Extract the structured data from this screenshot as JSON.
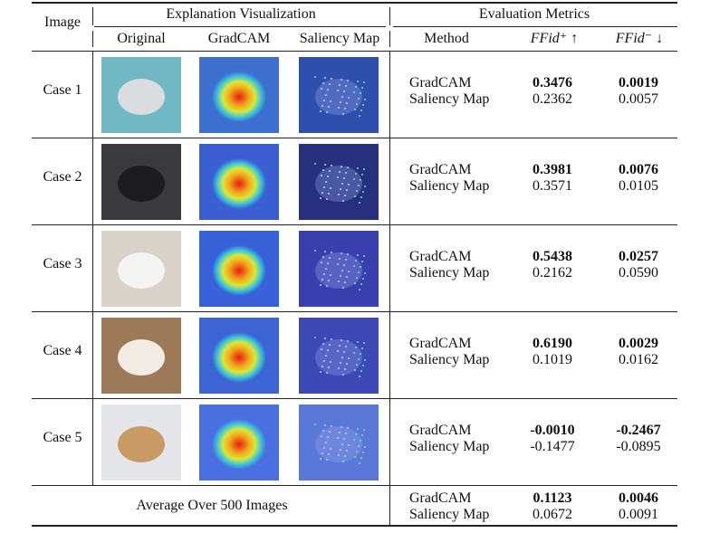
{
  "header": {
    "image": "Image",
    "explanation_visualization": "Explanation Visualization",
    "evaluation_metrics": "Evaluation Metrics",
    "col_original": "Original",
    "col_gradcam": "GradCAM",
    "col_saliency": "Saliency Map",
    "col_method": "Method",
    "col_ffid_plus": "FFid⁺ ↑",
    "col_ffid_minus": "FFid⁻ ↓"
  },
  "rows": [
    {
      "case": "Case 1",
      "methods": [
        {
          "name": "GradCAM",
          "ffid_plus": "0.3476",
          "ffid_minus": "0.0019"
        },
        {
          "name": "Saliency Map",
          "ffid_plus": "0.2362",
          "ffid_minus": "0.0057"
        }
      ]
    },
    {
      "case": "Case 2",
      "methods": [
        {
          "name": "GradCAM",
          "ffid_plus": "0.3981",
          "ffid_minus": "0.0076"
        },
        {
          "name": "Saliency Map",
          "ffid_plus": "0.3571",
          "ffid_minus": "0.0105"
        }
      ]
    },
    {
      "case": "Case 3",
      "methods": [
        {
          "name": "GradCAM",
          "ffid_plus": "0.5438",
          "ffid_minus": "0.0257"
        },
        {
          "name": "Saliency Map",
          "ffid_plus": "0.2162",
          "ffid_minus": "0.0590"
        }
      ]
    },
    {
      "case": "Case 4",
      "methods": [
        {
          "name": "GradCAM",
          "ffid_plus": "0.6190",
          "ffid_minus": "0.0029"
        },
        {
          "name": "Saliency Map",
          "ffid_plus": "0.1019",
          "ffid_minus": "0.0162"
        }
      ]
    },
    {
      "case": "Case 5",
      "methods": [
        {
          "name": "GradCAM",
          "ffid_plus": "-0.0010",
          "ffid_minus": "-0.2467"
        },
        {
          "name": "Saliency Map",
          "ffid_plus": "-0.1477",
          "ffid_minus": "-0.0895"
        }
      ]
    }
  ],
  "average": {
    "label": "Average Over 500 Images",
    "methods": [
      {
        "name": "GradCAM",
        "ffid_plus": "0.1123",
        "ffid_minus": "0.0046"
      },
      {
        "name": "Saliency Map",
        "ffid_plus": "0.0672",
        "ffid_minus": "0.0091"
      }
    ]
  },
  "images": [
    {
      "original": "#6fb8c4",
      "subject": "#d9dde0",
      "gradcam": "#3d6fd0",
      "saliency": "#2f4fae"
    },
    {
      "original": "#3a3a3e",
      "subject": "#1c1c1e",
      "gradcam": "#3b5fd3",
      "saliency": "#26307f"
    },
    {
      "original": "#d8d2c8",
      "subject": "#f4f4f2",
      "gradcam": "#3860d8",
      "saliency": "#3a3fb0"
    },
    {
      "original": "#9c7a58",
      "subject": "#f2ece4",
      "gradcam": "#3d64d4",
      "saliency": "#3b48b6"
    },
    {
      "original": "#e4e6ea",
      "subject": "#c89a64",
      "gradcam": "#4a6fe0",
      "saliency": "#5a78d8"
    }
  ]
}
